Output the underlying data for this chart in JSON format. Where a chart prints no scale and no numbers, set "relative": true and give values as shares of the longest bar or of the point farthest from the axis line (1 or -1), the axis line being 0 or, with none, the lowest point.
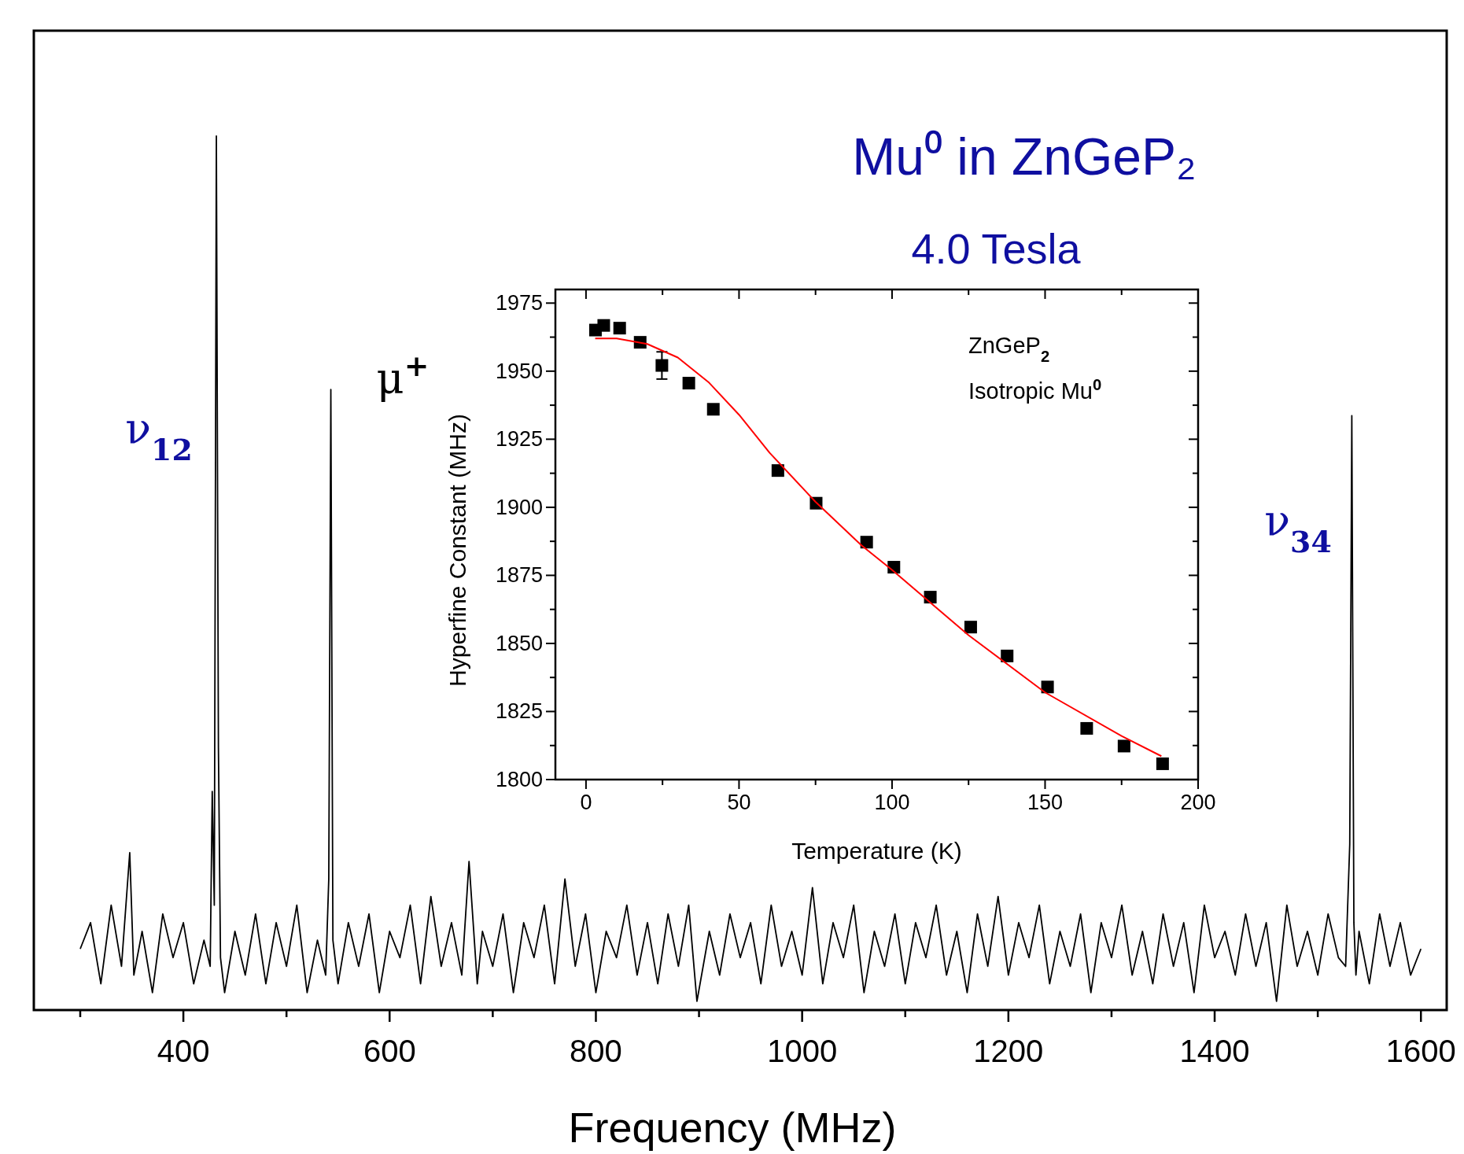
{
  "chart_data": [
    {
      "type": "line",
      "title": "Mu⁰ in ZnGeP₂",
      "subtitle": "4.0 Tesla",
      "xlabel": "Frequency  (MHz)",
      "relative": true,
      "xlim": [
        255,
        1625
      ],
      "xticks": [
        {
          "value": 300,
          "label": null
        },
        400,
        {
          "value": 500,
          "label": null
        },
        600,
        {
          "value": 700,
          "label": null
        },
        800,
        {
          "value": 900,
          "label": null
        },
        1000,
        {
          "value": 1100,
          "label": null
        },
        1200,
        {
          "value": 1300,
          "label": null
        },
        1400,
        {
          "value": 1500,
          "label": null
        },
        1600
      ],
      "annotations": [
        "ν$_{12}$",
        "μ$^{+}$",
        "ν$_{34}$"
      ],
      "series": [
        {
          "color": "#000000",
          "x": [
            300,
            310,
            320,
            330,
            340,
            348,
            352,
            360,
            370,
            380,
            390,
            400,
            410,
            420,
            426,
            428,
            430,
            432,
            434,
            436,
            440,
            450,
            460,
            470,
            480,
            490,
            500,
            510,
            520,
            530,
            538,
            541,
            543,
            545,
            550,
            560,
            570,
            580,
            590,
            600,
            610,
            620,
            630,
            640,
            650,
            660,
            670,
            677,
            685,
            690,
            700,
            710,
            720,
            730,
            740,
            750,
            760,
            770,
            780,
            790,
            800,
            810,
            820,
            830,
            840,
            850,
            860,
            870,
            880,
            890,
            898,
            910,
            920,
            930,
            940,
            950,
            960,
            970,
            980,
            990,
            1000,
            1010,
            1020,
            1030,
            1040,
            1050,
            1060,
            1070,
            1080,
            1090,
            1100,
            1110,
            1120,
            1130,
            1140,
            1150,
            1160,
            1170,
            1180,
            1190,
            1200,
            1210,
            1220,
            1230,
            1240,
            1250,
            1260,
            1270,
            1280,
            1290,
            1300,
            1310,
            1320,
            1330,
            1340,
            1350,
            1360,
            1370,
            1380,
            1390,
            1400,
            1410,
            1420,
            1430,
            1440,
            1450,
            1460,
            1470,
            1480,
            1490,
            1500,
            1510,
            1520,
            1527,
            1531,
            1533,
            1535,
            1537,
            1540,
            1550,
            1560,
            1570,
            1580,
            1590,
            1600
          ],
          "values": [
            0.07,
            0.1,
            0.03,
            0.12,
            0.05,
            0.18,
            0.04,
            0.09,
            0.02,
            0.11,
            0.06,
            0.1,
            0.03,
            0.08,
            0.05,
            0.25,
            0.12,
            1,
            0.3,
            0.06,
            0.02,
            0.09,
            0.04,
            0.11,
            0.03,
            0.1,
            0.05,
            0.12,
            0.02,
            0.08,
            0.04,
            0.15,
            0.71,
            0.08,
            0.03,
            0.1,
            0.05,
            0.11,
            0.02,
            0.09,
            0.06,
            0.12,
            0.03,
            0.13,
            0.05,
            0.1,
            0.04,
            0.17,
            0.03,
            0.09,
            0.05,
            0.11,
            0.02,
            0.1,
            0.06,
            0.12,
            0.03,
            0.15,
            0.05,
            0.11,
            0.02,
            0.09,
            0.06,
            0.12,
            0.04,
            0.1,
            0.03,
            0.11,
            0.05,
            0.12,
            0.01,
            0.09,
            0.04,
            0.11,
            0.06,
            0.1,
            0.03,
            0.12,
            0.05,
            0.09,
            0.04,
            0.14,
            0.03,
            0.1,
            0.06,
            0.12,
            0.02,
            0.09,
            0.05,
            0.11,
            0.03,
            0.1,
            0.06,
            0.12,
            0.04,
            0.09,
            0.02,
            0.11,
            0.05,
            0.13,
            0.04,
            0.1,
            0.06,
            0.12,
            0.03,
            0.09,
            0.05,
            0.11,
            0.02,
            0.1,
            0.06,
            0.12,
            0.04,
            0.09,
            0.03,
            0.11,
            0.05,
            0.1,
            0.02,
            0.12,
            0.06,
            0.09,
            0.04,
            0.11,
            0.05,
            0.1,
            0.01,
            0.12,
            0.05,
            0.09,
            0.04,
            0.11,
            0.06,
            0.05,
            0.19,
            0.68,
            0.1,
            0.04,
            0.09,
            0.03,
            0.11,
            0.05,
            0.1,
            0.04,
            0.07
          ]
        }
      ]
    },
    {
      "type": "scatter",
      "xlabel": "Temperature (K)",
      "ylabel": "Hyperfine Constant  (MHz)",
      "xlim": [
        -10,
        200
      ],
      "ylim": [
        1800,
        1980
      ],
      "xticks": [
        0,
        {
          "value": 25,
          "label": null
        },
        50,
        {
          "value": 75,
          "label": null
        },
        100,
        {
          "value": 125,
          "label": null
        },
        150,
        {
          "value": 175,
          "label": null
        },
        200
      ],
      "yticks": [
        1800,
        {
          "value": 1812.5,
          "label": null
        },
        1825,
        {
          "value": 1837.5,
          "label": null
        },
        1850,
        {
          "value": 1862.5,
          "label": null
        },
        1875,
        {
          "value": 1887.5,
          "label": null
        },
        1900,
        {
          "value": 1912.5,
          "label": null
        },
        1925,
        {
          "value": 1937.5,
          "label": null
        },
        1950,
        {
          "value": 1962.5,
          "label": null
        },
        1975
      ],
      "annotations": [
        "ZnGeP$_{2}$",
        "Isotropic Mu$^{0}$"
      ],
      "series": [
        {
          "type": "scatter",
          "marker": "square",
          "color": "#000000",
          "x": [
            3.1,
            5.8,
            11,
            17.7,
            24.8,
            33.6,
            41.6,
            62.7,
            75.2,
            91.7,
            100.6,
            112.5,
            125.7,
            137.6,
            150.8,
            163.6,
            175.8,
            188.4
          ],
          "values": [
            1965.1,
            1966.8,
            1965.8,
            1960.6,
            1952.1,
            1945.6,
            1936,
            1913.5,
            1901.5,
            1887.2,
            1878,
            1867,
            1856,
            1845.4,
            1834,
            1818.8,
            1812.3,
            1805.8
          ],
          "errors": [
            null,
            null,
            null,
            null,
            5,
            null,
            null,
            null,
            null,
            null,
            null,
            null,
            null,
            null,
            null,
            null,
            null,
            null
          ]
        },
        {
          "type": "line",
          "color": "#ff0000",
          "x": [
            3,
            10,
            20,
            30,
            40,
            50,
            60,
            75,
            90,
            100,
            125,
            150,
            175,
            188
          ],
          "values": [
            1962,
            1962,
            1960,
            1955,
            1946,
            1934,
            1920,
            1902,
            1886,
            1877,
            1853,
            1832,
            1816,
            1808.6
          ]
        }
      ]
    }
  ]
}
